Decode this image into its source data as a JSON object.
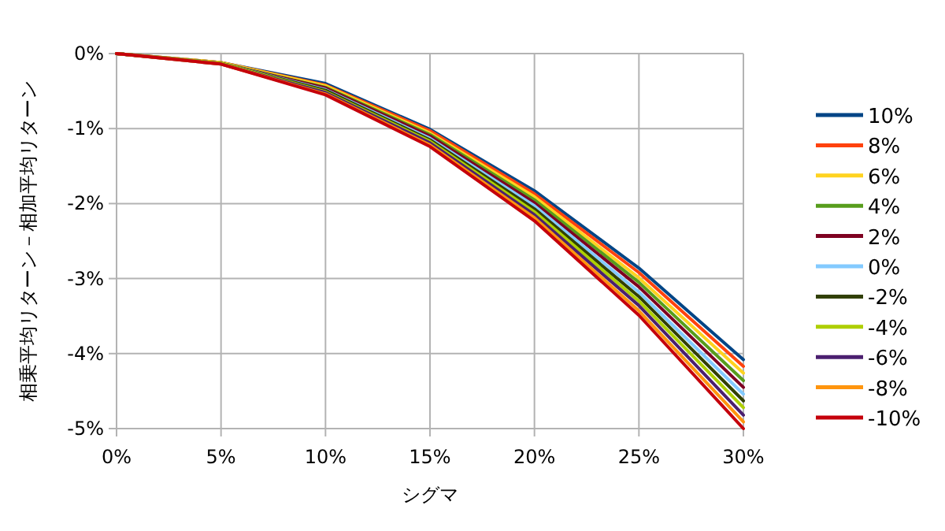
{
  "chart_data": {
    "type": "line",
    "xlabel": "シグマ",
    "ylabel": "相乗平均リターン－相加平均リターン",
    "categories": [
      "0%",
      "5%",
      "10%",
      "15%",
      "20%",
      "25%",
      "30%"
    ],
    "ylim": [
      -5,
      0
    ],
    "yticks": [
      {
        "value": -5,
        "label": "-5%"
      },
      {
        "value": -4,
        "label": "-4%"
      },
      {
        "value": -3,
        "label": "-3%"
      },
      {
        "value": -2,
        "label": "-2%"
      },
      {
        "value": -1,
        "label": "-1%"
      },
      {
        "value": 0,
        "label": "0%"
      }
    ],
    "grid": true,
    "legend": "right",
    "marker": "none",
    "line_style": "solid",
    "series": [
      {
        "name": "10%",
        "color": "#004586",
        "values": [
          0,
          -0.12,
          -0.4,
          -1.01,
          -1.83,
          -2.86,
          -4.08
        ]
      },
      {
        "name": "8%",
        "color": "#ff420e",
        "values": [
          0,
          -0.12,
          -0.42,
          -1.03,
          -1.87,
          -2.92,
          -4.17
        ]
      },
      {
        "name": "6%",
        "color": "#ffd320",
        "values": [
          0,
          -0.12,
          -0.43,
          -1.06,
          -1.91,
          -2.99,
          -4.26
        ]
      },
      {
        "name": "4%",
        "color": "#579d1c",
        "values": [
          0,
          -0.13,
          -0.45,
          -1.08,
          -1.95,
          -3.05,
          -4.36
        ]
      },
      {
        "name": "2%",
        "color": "#7e0021",
        "values": [
          0,
          -0.13,
          -0.46,
          -1.1,
          -1.99,
          -3.11,
          -4.45
        ]
      },
      {
        "name": "0%",
        "color": "#83caff",
        "values": [
          0,
          -0.13,
          -0.48,
          -1.13,
          -2.03,
          -3.18,
          -4.54
        ]
      },
      {
        "name": "-2%",
        "color": "#314004",
        "values": [
          0,
          -0.13,
          -0.49,
          -1.15,
          -2.07,
          -3.24,
          -4.63
        ]
      },
      {
        "name": "-4%",
        "color": "#aecf00",
        "values": [
          0,
          -0.13,
          -0.51,
          -1.17,
          -2.11,
          -3.3,
          -4.72
        ]
      },
      {
        "name": "-6%",
        "color": "#4b1f6f",
        "values": [
          0,
          -0.14,
          -0.52,
          -1.19,
          -2.15,
          -3.36,
          -4.82
        ]
      },
      {
        "name": "-8%",
        "color": "#ff950e",
        "values": [
          0,
          -0.14,
          -0.54,
          -1.22,
          -2.19,
          -3.43,
          -4.91
        ]
      },
      {
        "name": "-10%",
        "color": "#c5000b",
        "values": [
          0,
          -0.14,
          -0.55,
          -1.24,
          -2.23,
          -3.49,
          -5.0
        ]
      }
    ]
  }
}
